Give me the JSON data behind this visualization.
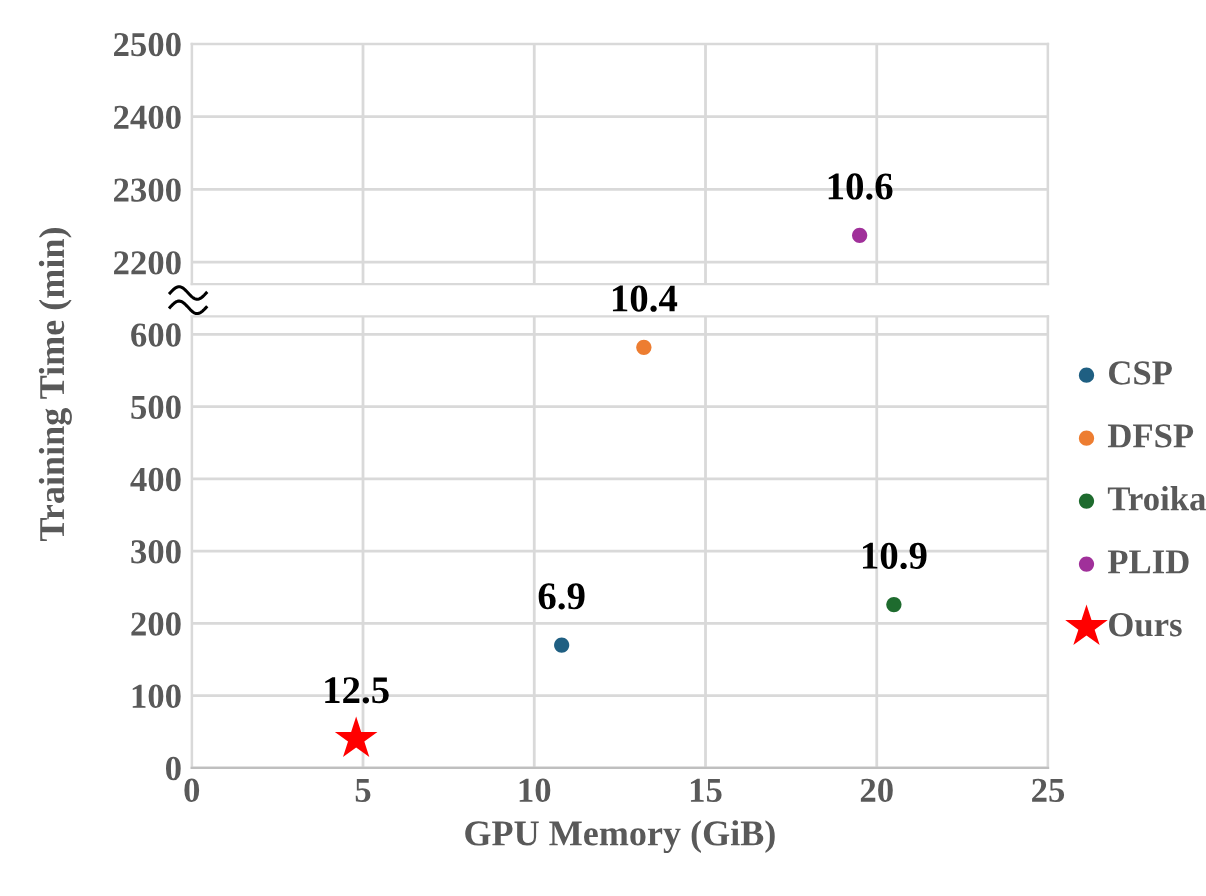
{
  "chart_data": [
    {
      "type": "scatter",
      "ylim": [
        2170,
        2500
      ],
      "yticks": [
        2200,
        2300,
        2400,
        2500
      ],
      "xlim": [
        0,
        25
      ],
      "xticks": [
        0,
        5,
        10,
        15,
        20,
        25
      ],
      "tick_labels": "y",
      "grid": true,
      "legend": "right",
      "series": [
        {
          "name": "PLID",
          "color": "#a0309a",
          "marker": "circle",
          "x": [
            19.5
          ],
          "values": [
            2237
          ]
        }
      ],
      "annotations": [
        {
          "text": "10.6",
          "x": 19.5,
          "y": 2237
        }
      ]
    },
    {
      "type": "scatter",
      "ylim": [
        0,
        625
      ],
      "yticks": [
        0,
        100,
        200,
        300,
        400,
        500,
        600
      ],
      "xlim": [
        0,
        25
      ],
      "xticks": [
        0,
        5,
        10,
        15,
        20,
        25
      ],
      "xlabel": "GPU Memory (GiB)",
      "ylabel": "Training Time (min)",
      "grid": true,
      "legend": "right",
      "series": [
        {
          "name": "CSP",
          "color": "#1f5f82",
          "marker": "circle",
          "x": [
            10.8
          ],
          "values": [
            170
          ]
        },
        {
          "name": "DFSP",
          "color": "#ed7d31",
          "marker": "circle",
          "x": [
            13.2
          ],
          "values": [
            582
          ]
        },
        {
          "name": "Troika",
          "color": "#1e6b2e",
          "marker": "circle",
          "x": [
            20.5
          ],
          "values": [
            226
          ]
        },
        {
          "name": "Ours",
          "color": "#ff0000",
          "marker": "star",
          "x": [
            4.8
          ],
          "values": [
            40
          ]
        }
      ],
      "annotations": [
        {
          "text": "6.9",
          "x": 10.8,
          "y": 170
        },
        {
          "text": "10.4",
          "x": 13.2,
          "y": 582
        },
        {
          "text": "10.9",
          "x": 20.5,
          "y": 226
        },
        {
          "text": "12.5",
          "x": 4.8,
          "y": 40
        }
      ]
    }
  ]
}
